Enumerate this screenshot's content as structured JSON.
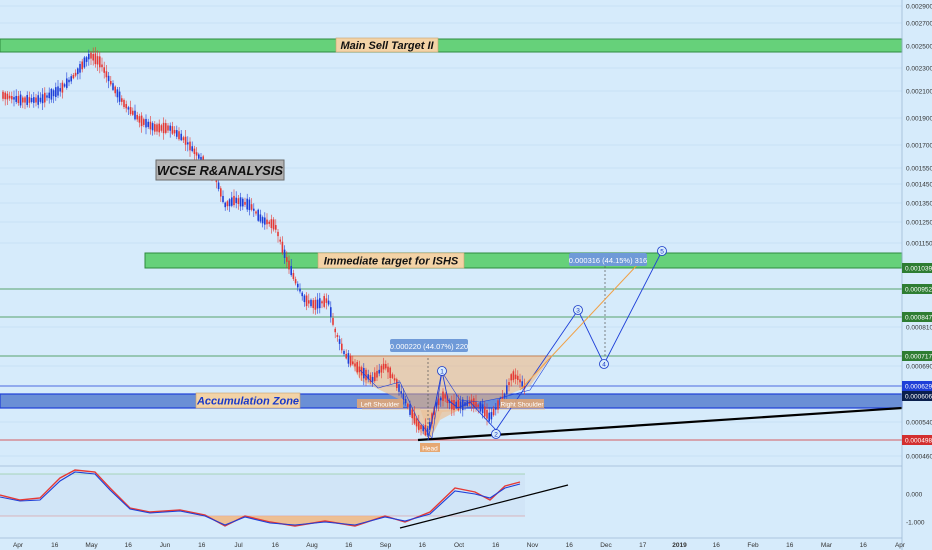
{
  "chart_data": {
    "type": "candlestick",
    "price_axis": {
      "labels": [
        {
          "v": 0.0029,
          "t": "0.002900"
        },
        {
          "v": 0.0027,
          "t": "0.002700"
        },
        {
          "v": 0.0025,
          "t": "0.002500"
        },
        {
          "v": 0.0023,
          "t": "0.002300"
        },
        {
          "v": 0.0021,
          "t": "0.002100"
        },
        {
          "v": 0.0019,
          "t": "0.001900"
        },
        {
          "v": 0.0017,
          "t": "0.001700"
        },
        {
          "v": 0.00155,
          "t": "0.001550"
        },
        {
          "v": 0.00145,
          "t": "0.001450"
        },
        {
          "v": 0.00135,
          "t": "0.001350"
        },
        {
          "v": 0.00125,
          "t": "0.001250"
        },
        {
          "v": 0.00115,
          "t": "0.001150"
        },
        {
          "v": 0.00081,
          "t": "0.000810"
        },
        {
          "v": 0.00069,
          "t": "0.000690"
        },
        {
          "v": 0.00054,
          "t": "0.000540"
        },
        {
          "v": 0.00046,
          "t": "0.000460"
        }
      ],
      "badges": [
        {
          "v": 0.001039,
          "t": "0.001039",
          "color": "#2e7d32"
        },
        {
          "v": 0.000952,
          "t": "0.000952",
          "color": "#2e7d32"
        },
        {
          "v": 0.000847,
          "t": "0.000847",
          "color": "#2e7d32"
        },
        {
          "v": 0.000717,
          "t": "0.000717",
          "color": "#2e7d32"
        },
        {
          "v": 0.000629,
          "t": "0.000629",
          "color": "#1e3fd8"
        },
        {
          "v": 0.000606,
          "t": "0.000606",
          "color": "#0a1f4d"
        },
        {
          "v": 0.000498,
          "t": "0.000498",
          "color": "#d32f2f"
        }
      ]
    },
    "time_axis": [
      "Apr",
      "16",
      "May",
      "16",
      "Jun",
      "16",
      "Jul",
      "16",
      "Aug",
      "16",
      "Sep",
      "16",
      "Oct",
      "16",
      "Nov",
      "16",
      "Dec",
      "17",
      "2019",
      "16",
      "Feb",
      "16",
      "Mar",
      "16",
      "Apr"
    ],
    "levels": {
      "main_sell_target": {
        "label": "Main Sell Target II",
        "color": "#66d17a"
      },
      "immediate_target": {
        "label": "Immediate target for ISHS",
        "color": "#66d17a"
      },
      "accumulation_zone": {
        "label": "Accumulation Zone",
        "color": "#6a8fd6"
      }
    },
    "analysis_label": "WCSE R&ANALYSIS",
    "measure_1": "0.000220 (44.07%) 220",
    "measure_2": "0.000316 (44.15%) 316",
    "ishs_labels": {
      "left_shoulder": "Left Shoulder",
      "head": "Head",
      "right_shoulder": "Right Shoulder"
    },
    "wave_labels": [
      "1",
      "2",
      "3",
      "4",
      "5"
    ],
    "oscillator_axis": [
      {
        "v": 0.0,
        "t": "0.000"
      },
      {
        "v": -1.0,
        "t": "-1.000"
      }
    ],
    "colors": {
      "up": "#1e3fd8",
      "down": "#e53935",
      "background": "#d6ebfb",
      "trendline": "#000000"
    }
  }
}
